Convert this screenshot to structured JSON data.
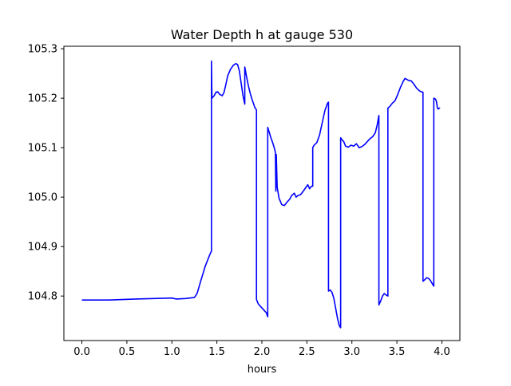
{
  "chart_data": {
    "type": "line",
    "title": "Water Depth h at gauge 530",
    "xlabel": "hours",
    "ylabel": "",
    "xlim": [
      -0.2,
      4.2
    ],
    "ylim": [
      104.71,
      105.305
    ],
    "xticks": [
      0.0,
      0.5,
      1.0,
      1.5,
      2.0,
      2.5,
      3.0,
      3.5,
      4.0
    ],
    "xtick_labels": [
      "0.0",
      "0.5",
      "1.0",
      "1.5",
      "2.0",
      "2.5",
      "3.0",
      "3.5",
      "4.0"
    ],
    "yticks": [
      104.8,
      104.9,
      105.0,
      105.1,
      105.2,
      105.3
    ],
    "ytick_labels": [
      "104.8",
      "104.9",
      "105.0",
      "105.1",
      "105.2",
      "105.3"
    ],
    "grid": false,
    "legend": "none",
    "series": [
      {
        "color": "#0000ff",
        "points": [
          [
            0.0,
            104.792
          ],
          [
            0.3,
            104.792
          ],
          [
            0.6,
            104.794
          ],
          [
            0.8,
            104.795
          ],
          [
            1.0,
            104.796
          ],
          [
            1.05,
            104.794
          ],
          [
            1.15,
            104.795
          ],
          [
            1.25,
            104.797
          ],
          [
            1.28,
            104.805
          ],
          [
            1.32,
            104.83
          ],
          [
            1.37,
            104.86
          ],
          [
            1.42,
            104.883
          ],
          [
            1.44,
            104.891
          ],
          [
            1.44,
            105.275
          ],
          [
            1.445,
            105.2
          ],
          [
            1.47,
            105.205
          ],
          [
            1.49,
            105.212
          ],
          [
            1.51,
            105.213
          ],
          [
            1.53,
            105.208
          ],
          [
            1.56,
            105.205
          ],
          [
            1.58,
            105.212
          ],
          [
            1.6,
            105.228
          ],
          [
            1.62,
            105.245
          ],
          [
            1.65,
            105.258
          ],
          [
            1.68,
            105.266
          ],
          [
            1.71,
            105.27
          ],
          [
            1.73,
            105.268
          ],
          [
            1.75,
            105.255
          ],
          [
            1.77,
            105.23
          ],
          [
            1.79,
            105.205
          ],
          [
            1.81,
            105.188
          ],
          [
            1.81,
            105.263
          ],
          [
            1.83,
            105.243
          ],
          [
            1.85,
            105.225
          ],
          [
            1.87,
            105.21
          ],
          [
            1.89,
            105.198
          ],
          [
            1.92,
            105.182
          ],
          [
            1.94,
            105.176
          ],
          [
            1.94,
            104.793
          ],
          [
            1.96,
            104.784
          ],
          [
            1.99,
            104.778
          ],
          [
            2.02,
            104.772
          ],
          [
            2.05,
            104.766
          ],
          [
            2.065,
            104.758
          ],
          [
            2.065,
            105.141
          ],
          [
            2.08,
            105.132
          ],
          [
            2.1,
            105.12
          ],
          [
            2.12,
            105.11
          ],
          [
            2.14,
            105.098
          ],
          [
            2.15,
            105.09
          ],
          [
            2.155,
            105.012
          ],
          [
            2.16,
            105.086
          ],
          [
            2.17,
            105.02
          ],
          [
            2.19,
            104.998
          ],
          [
            2.22,
            104.985
          ],
          [
            2.25,
            104.983
          ],
          [
            2.28,
            104.99
          ],
          [
            2.31,
            104.996
          ],
          [
            2.33,
            105.003
          ],
          [
            2.36,
            105.008
          ],
          [
            2.38,
            105.0
          ],
          [
            2.4,
            105.003
          ],
          [
            2.43,
            105.005
          ],
          [
            2.46,
            105.012
          ],
          [
            2.49,
            105.02
          ],
          [
            2.51,
            105.025
          ],
          [
            2.53,
            105.017
          ],
          [
            2.55,
            105.022
          ],
          [
            2.565,
            105.022
          ],
          [
            2.565,
            105.1
          ],
          [
            2.58,
            105.105
          ],
          [
            2.61,
            105.11
          ],
          [
            2.64,
            105.125
          ],
          [
            2.67,
            105.15
          ],
          [
            2.7,
            105.175
          ],
          [
            2.73,
            105.19
          ],
          [
            2.74,
            105.192
          ],
          [
            2.74,
            104.81
          ],
          [
            2.76,
            104.812
          ],
          [
            2.78,
            104.807
          ],
          [
            2.8,
            104.795
          ],
          [
            2.82,
            104.775
          ],
          [
            2.84,
            104.755
          ],
          [
            2.86,
            104.74
          ],
          [
            2.875,
            104.736
          ],
          [
            2.875,
            105.12
          ],
          [
            2.89,
            105.116
          ],
          [
            2.91,
            105.112
          ],
          [
            2.93,
            105.103
          ],
          [
            2.96,
            105.101
          ],
          [
            2.99,
            105.105
          ],
          [
            3.02,
            105.103
          ],
          [
            3.05,
            105.108
          ],
          [
            3.08,
            105.1
          ],
          [
            3.11,
            105.102
          ],
          [
            3.14,
            105.106
          ],
          [
            3.17,
            105.112
          ],
          [
            3.2,
            105.118
          ],
          [
            3.23,
            105.122
          ],
          [
            3.26,
            105.13
          ],
          [
            3.28,
            105.145
          ],
          [
            3.3,
            105.165
          ],
          [
            3.3,
            104.782
          ],
          [
            3.32,
            104.79
          ],
          [
            3.34,
            104.8
          ],
          [
            3.36,
            104.805
          ],
          [
            3.38,
            104.802
          ],
          [
            3.4,
            104.8
          ],
          [
            3.4,
            105.18
          ],
          [
            3.42,
            105.183
          ],
          [
            3.45,
            105.19
          ],
          [
            3.48,
            105.195
          ],
          [
            3.51,
            105.208
          ],
          [
            3.54,
            105.222
          ],
          [
            3.57,
            105.234
          ],
          [
            3.59,
            105.24
          ],
          [
            3.61,
            105.238
          ],
          [
            3.63,
            105.236
          ],
          [
            3.66,
            105.235
          ],
          [
            3.69,
            105.228
          ],
          [
            3.72,
            105.22
          ],
          [
            3.75,
            105.215
          ],
          [
            3.77,
            105.213
          ],
          [
            3.79,
            105.212
          ],
          [
            3.79,
            104.83
          ],
          [
            3.81,
            104.833
          ],
          [
            3.83,
            104.837
          ],
          [
            3.85,
            104.836
          ],
          [
            3.87,
            104.832
          ],
          [
            3.89,
            104.826
          ],
          [
            3.91,
            104.82
          ],
          [
            3.91,
            105.2
          ],
          [
            3.93,
            105.198
          ],
          [
            3.94,
            105.193
          ],
          [
            3.95,
            105.18
          ],
          [
            3.96,
            105.178
          ],
          [
            3.97,
            105.18
          ],
          [
            3.98,
            105.18
          ]
        ]
      }
    ]
  }
}
